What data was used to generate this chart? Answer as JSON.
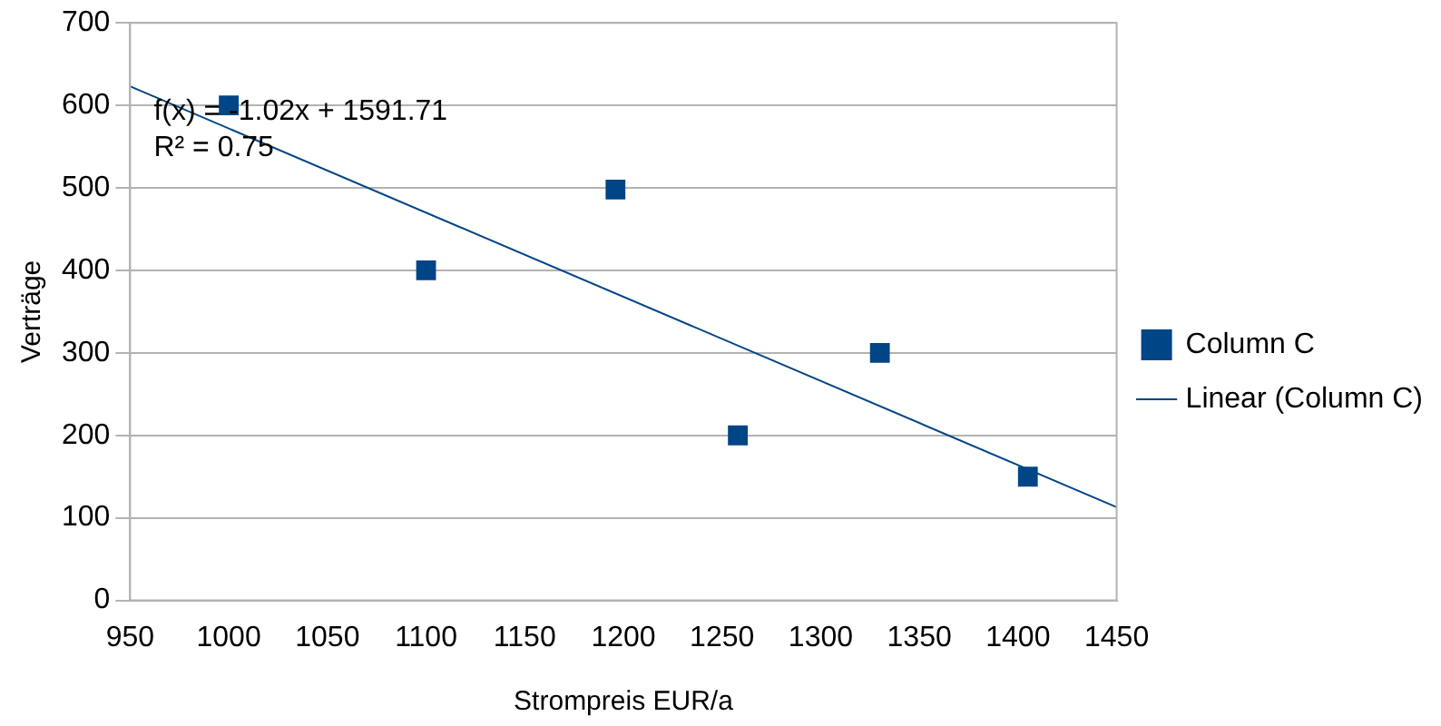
{
  "chart_data": {
    "type": "scatter",
    "xlabel": "Strompreis EUR/a",
    "ylabel": "Verträge",
    "xlim": [
      950,
      1450
    ],
    "xticks": [
      950,
      1000,
      1050,
      1100,
      1150,
      1200,
      1250,
      1300,
      1350,
      1400,
      1450
    ],
    "ylim": [
      0,
      700
    ],
    "yticks": [
      0,
      100,
      200,
      300,
      400,
      500,
      600,
      700
    ],
    "grid": "y",
    "legend": "right",
    "marker": "square",
    "annotations": [
      "f(x) = -1.02x + 1591.71",
      "R² = 0.75"
    ],
    "series": [
      {
        "name": "Column C",
        "type": "scatter",
        "color": "#004586",
        "x": [
          1000,
          1100,
          1196,
          1258,
          1330,
          1405
        ],
        "values": [
          600,
          400,
          498,
          200,
          300,
          150
        ]
      },
      {
        "name": "Linear (Column C)",
        "type": "line",
        "color": "#004586",
        "marker": "none",
        "x": [
          950,
          1450
        ],
        "values": [
          623,
          113
        ]
      }
    ]
  }
}
